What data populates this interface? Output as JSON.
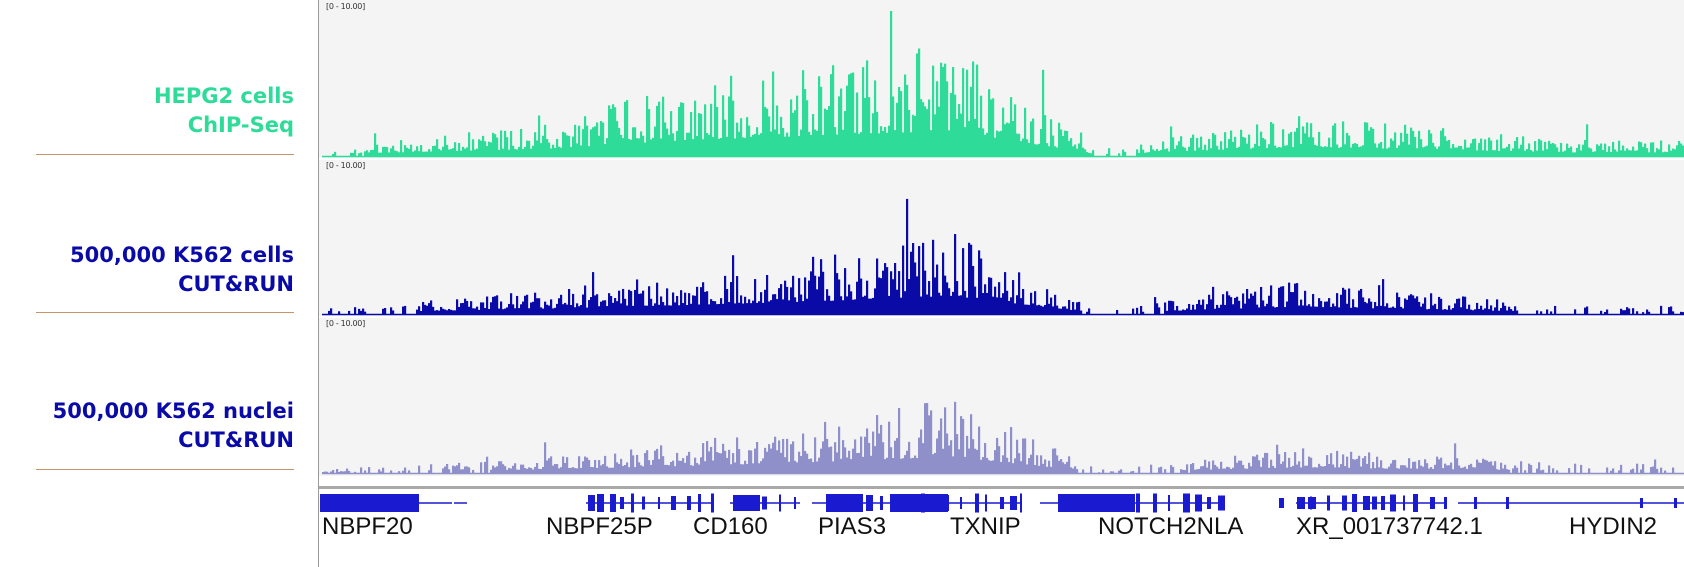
{
  "tracks": [
    {
      "label_line1": "HEPG2 cells",
      "label_line2": "ChIP-Seq",
      "range": "[0 - 10.00]",
      "color": "#2edb98"
    },
    {
      "label_line1": "500,000 K562 cells",
      "label_line2": "CUT&RUN",
      "range": "[0 - 10.00]",
      "color": "#0a0aa6"
    },
    {
      "label_line1": "500,000 K562 nuclei",
      "label_line2": "CUT&RUN",
      "range": "[0 - 10.00]",
      "color": "#8f8fc9"
    }
  ],
  "genes": [
    "NBPF20",
    "NBPF25P",
    "CD160",
    "PIAS3",
    "TXNIP",
    "NOTCH2NLA",
    "XR_001737742.1",
    "HYDIN2"
  ],
  "gene_color": "#1a1ad0",
  "chart_data": {
    "type": "area",
    "title": "",
    "xlabel": "",
    "ylabel": "",
    "ylim": [
      0,
      10
    ],
    "x": [
      "NBPF20",
      "NBPF25P",
      "CD160",
      "PIAS3",
      "TXNIP",
      "NOTCH2NLA",
      "XR_001737742.1",
      "HYDIN2"
    ],
    "series": [
      {
        "name": "HEPG2 cells ChIP-Seq",
        "values": [
          0.5,
          2.0,
          4.5,
          5.5,
          7.0,
          0.4,
          2.5,
          1.0
        ]
      },
      {
        "name": "500,000 K562 cells CUT&RUN",
        "values": [
          0.3,
          1.5,
          2.5,
          3.5,
          5.0,
          0.2,
          2.0,
          0.5
        ]
      },
      {
        "name": "500,000 K562 nuclei CUT&RUN",
        "values": [
          0.2,
          1.0,
          2.0,
          3.0,
          4.5,
          0.2,
          1.5,
          0.6
        ]
      }
    ]
  }
}
